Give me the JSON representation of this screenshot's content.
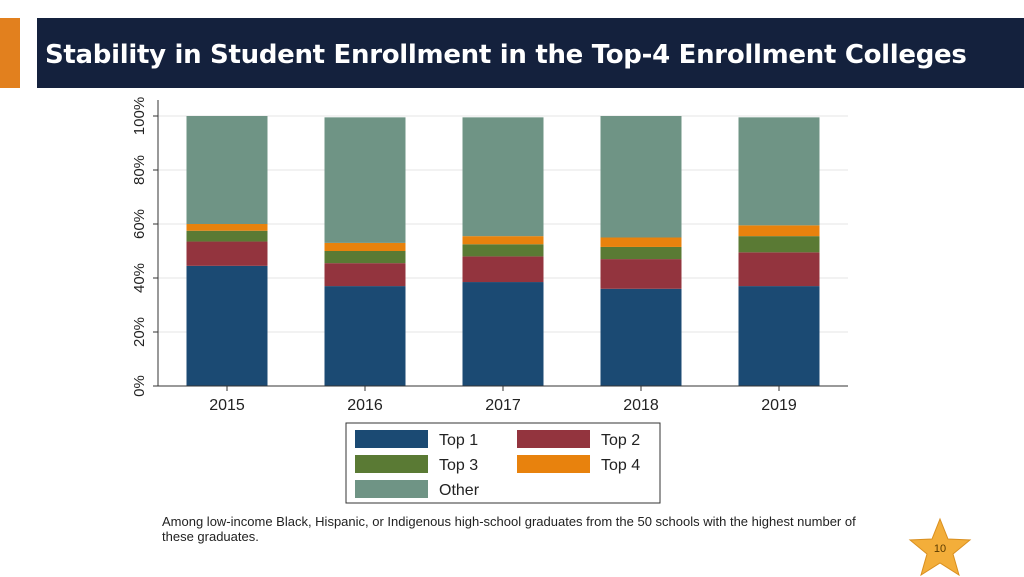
{
  "header": {
    "title": "Stability in Student Enrollment in the Top-4 Enrollment Colleges",
    "accent_color": "#e2801e",
    "bar_color": "#14213d"
  },
  "chart_data": {
    "type": "bar",
    "stacked": true,
    "categories": [
      "2015",
      "2016",
      "2017",
      "2018",
      "2019"
    ],
    "series": [
      {
        "name": "Top 1",
        "color": "#1b4a73",
        "values": [
          44.5,
          37.0,
          38.5,
          36.0,
          37.0
        ]
      },
      {
        "name": "Top 2",
        "color": "#93343e",
        "values": [
          9.0,
          8.5,
          9.5,
          11.0,
          12.5
        ]
      },
      {
        "name": "Top 3",
        "color": "#5a7a34",
        "values": [
          4.0,
          4.5,
          4.5,
          4.5,
          6.0
        ]
      },
      {
        "name": "Top 4",
        "color": "#e8820d",
        "values": [
          2.5,
          3.0,
          3.0,
          3.5,
          4.0
        ]
      },
      {
        "name": "Other",
        "color": "#6f9485",
        "values": [
          40.0,
          46.5,
          44.0,
          45.0,
          40.0
        ]
      }
    ],
    "y_ticks": [
      "0%",
      "20%",
      "40%",
      "60%",
      "80%",
      "100%"
    ],
    "ylim": [
      0,
      100
    ],
    "grid": true,
    "legend_position": "bottom"
  },
  "caption": "Among low-income Black, Hispanic, or Indigenous high-school graduates from the 50 schools with the highest number of these graduates.",
  "page_number": "10",
  "star_color": "#f3ae3a"
}
